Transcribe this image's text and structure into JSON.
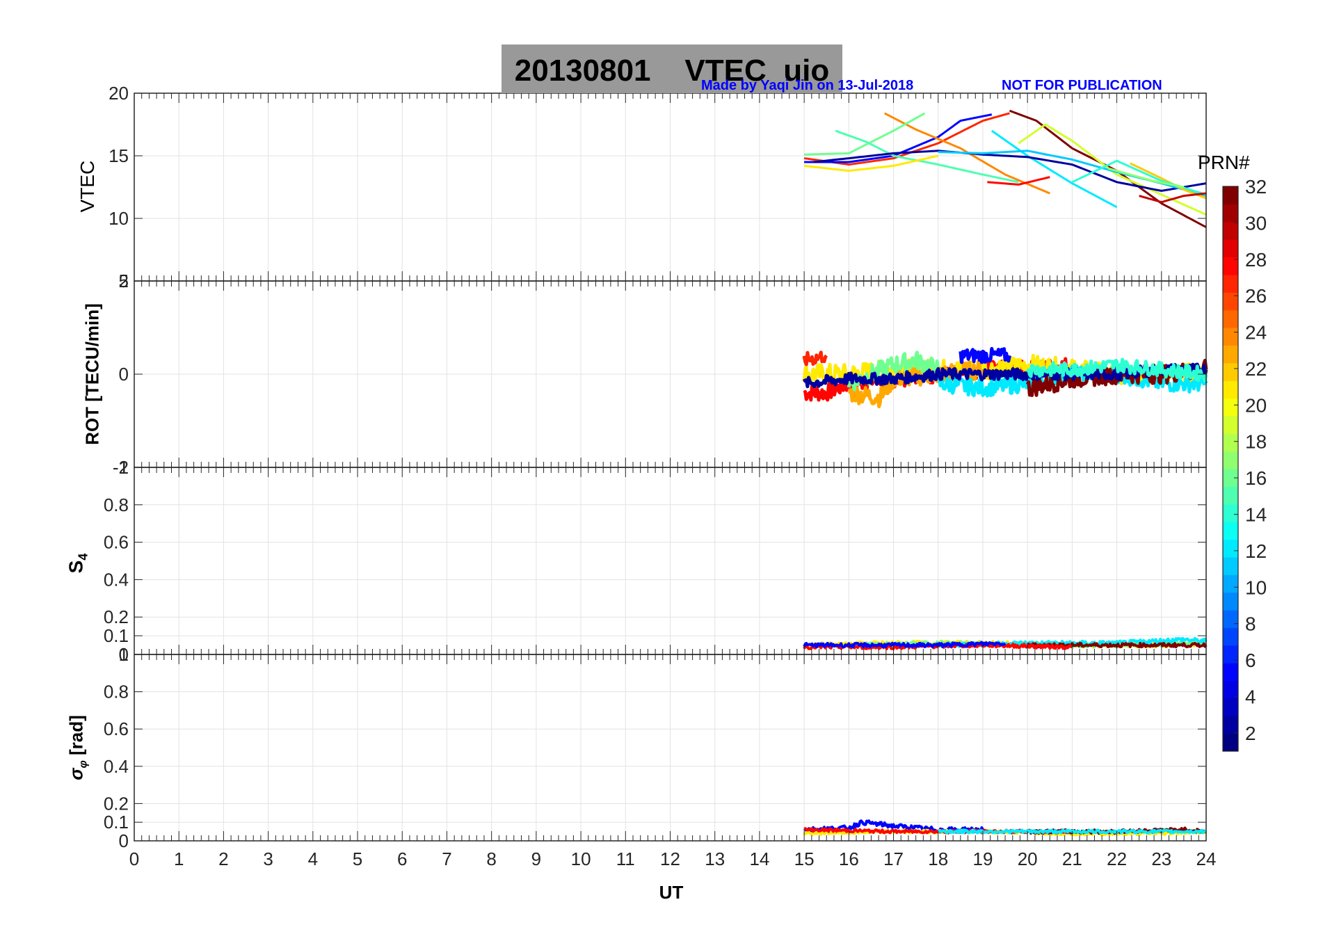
{
  "figure": {
    "title": "20130801    VTEC  uio",
    "credit_left": "Made by Yaqi Jin on 13-Jul-2018",
    "credit_right": "NOT FOR PUBLICATION",
    "xlabel": "UT",
    "colorbar_label": "PRN#",
    "colorbar_ticks": [
      2,
      4,
      6,
      8,
      10,
      12,
      14,
      16,
      18,
      20,
      22,
      24,
      26,
      28,
      30,
      32
    ],
    "colormap": "jet",
    "grid": true
  },
  "chart_data": [
    {
      "type": "line",
      "name": "vtec-panel",
      "ylabel": "VTEC",
      "xlim": [
        0,
        24
      ],
      "ylim": [
        5,
        20
      ],
      "yticks": [
        10,
        15,
        20
      ],
      "ytick_labels": [
        "10",
        "15",
        "20"
      ],
      "top_extra_tick": "",
      "series": [
        {
          "prn": 32,
          "x": [
            19.6,
            20.2,
            21,
            22,
            23,
            24
          ],
          "y": [
            18.6,
            17.8,
            15.6,
            13.8,
            11.2,
            9.3
          ]
        },
        {
          "prn": 27,
          "x": [
            15,
            16,
            17,
            18,
            19,
            19.6
          ],
          "y": [
            14.8,
            14.3,
            14.8,
            16,
            17.8,
            18.4
          ]
        },
        {
          "prn": 5,
          "x": [
            15,
            16,
            17,
            18,
            18.5,
            19.2
          ],
          "y": [
            14.5,
            14.5,
            15,
            16.5,
            17.8,
            18.3
          ]
        },
        {
          "prn": 12,
          "x": [
            19.2,
            20,
            21,
            22
          ],
          "y": [
            17,
            15,
            12.8,
            10.9
          ]
        },
        {
          "prn": 24,
          "x": [
            16.8,
            17.5,
            18.5,
            19.5,
            20.5
          ],
          "y": [
            18.4,
            17.1,
            15.6,
            13.5,
            12.0
          ]
        },
        {
          "prn": 16,
          "x": [
            15,
            16,
            17,
            17.7
          ],
          "y": [
            15.1,
            15.2,
            17,
            18.4
          ]
        },
        {
          "prn": 19,
          "x": [
            19.8,
            20.4,
            21,
            22,
            23,
            24
          ],
          "y": [
            16,
            17.5,
            16.2,
            13.5,
            11.9,
            10.3
          ]
        },
        {
          "prn": 15,
          "x": [
            15.7,
            16.4,
            17,
            18,
            19,
            19.8
          ],
          "y": [
            17,
            16.1,
            15,
            14.3,
            13.5,
            12.9
          ]
        },
        {
          "prn": 21,
          "x": [
            15,
            16,
            17,
            18
          ],
          "y": [
            14.2,
            13.8,
            14.2,
            15
          ]
        },
        {
          "prn": 2,
          "x": [
            15.2,
            16,
            17,
            18,
            19,
            20,
            21,
            22,
            23,
            24
          ],
          "y": [
            14.5,
            14.8,
            15.2,
            15.4,
            15.1,
            14.9,
            14.3,
            12.9,
            12.2,
            12.8
          ]
        },
        {
          "prn": 11,
          "x": [
            18,
            19,
            20,
            21,
            22,
            23,
            24
          ],
          "y": [
            15.3,
            15.2,
            15.4,
            14.7,
            13.7,
            12.8,
            11.8
          ]
        },
        {
          "prn": 28,
          "x": [
            19.1,
            19.8,
            20.5
          ],
          "y": [
            12.9,
            12.7,
            13.3
          ]
        },
        {
          "prn": 22,
          "x": [
            22.3,
            23,
            23.5,
            24
          ],
          "y": [
            14.4,
            13.2,
            12.3,
            11.6
          ]
        },
        {
          "prn": 14,
          "x": [
            21,
            22,
            23,
            24
          ],
          "y": [
            12.9,
            14.6,
            13.0,
            11.9
          ]
        },
        {
          "prn": 30,
          "x": [
            22.5,
            23,
            23.5,
            24
          ],
          "y": [
            11.8,
            11.3,
            11.8,
            12.0
          ]
        },
        {
          "prn": 17,
          "x": [
            21.8,
            22.8,
            23.5
          ],
          "y": [
            14.0,
            13.0,
            12.5
          ]
        }
      ]
    },
    {
      "type": "line",
      "name": "rot-panel",
      "ylabel": "ROT [TECU/min]",
      "xlim": [
        0,
        24
      ],
      "ylim": [
        -2,
        2
      ],
      "yticks": [
        -2,
        0,
        2
      ],
      "ytick_labels": [
        "-2",
        "0",
        "2"
      ],
      "top_extra_tick": "5",
      "series": [
        {
          "prn": 28,
          "x": [
            15,
            15.5,
            16,
            17,
            18,
            19,
            20,
            21
          ],
          "y": [
            -0.4,
            -0.4,
            -0.2,
            -0.1,
            0,
            0.1,
            0.1,
            0.2
          ],
          "jitter": 0.18
        },
        {
          "prn": 21,
          "x": [
            15,
            16,
            17,
            18,
            19,
            20,
            21,
            22,
            23,
            24
          ],
          "y": [
            0,
            0,
            0.1,
            0.1,
            0.1,
            0.2,
            0.1,
            0,
            0,
            0
          ],
          "jitter": 0.22
        },
        {
          "prn": 23,
          "x": [
            16,
            16.7,
            17,
            18,
            19
          ],
          "y": [
            -0.4,
            -0.5,
            -0.1,
            0,
            0.1
          ],
          "jitter": 0.2
        },
        {
          "prn": 16,
          "x": [
            16,
            17,
            17.5,
            18
          ],
          "y": [
            -0.2,
            0.2,
            0.3,
            0.1
          ],
          "jitter": 0.2
        },
        {
          "prn": 12,
          "x": [
            18,
            19,
            20,
            21,
            22,
            23,
            24
          ],
          "y": [
            -0.2,
            -0.3,
            -0.2,
            0,
            0,
            -0.2,
            -0.2
          ],
          "jitter": 0.18
        },
        {
          "prn": 5,
          "x": [
            18.5,
            19,
            19.6
          ],
          "y": [
            0.4,
            0.4,
            0.4
          ],
          "jitter": 0.15
        },
        {
          "prn": 32,
          "x": [
            20,
            21,
            22,
            23,
            24
          ],
          "y": [
            -0.3,
            -0.1,
            0,
            0,
            0.1
          ],
          "jitter": 0.2
        },
        {
          "prn": 27,
          "x": [
            15,
            15.5
          ],
          "y": [
            0.3,
            0.4
          ],
          "jitter": 0.15
        },
        {
          "prn": 2,
          "x": [
            15,
            16,
            17,
            18,
            19,
            20,
            21,
            22,
            23,
            24
          ],
          "y": [
            -0.2,
            -0.1,
            -0.1,
            0,
            0,
            0,
            0,
            0,
            0.1,
            0.1
          ],
          "jitter": 0.12
        },
        {
          "prn": 14,
          "x": [
            20,
            21,
            22,
            23,
            24
          ],
          "y": [
            0.1,
            0.1,
            0.2,
            0.1,
            0
          ],
          "jitter": 0.15
        }
      ]
    },
    {
      "type": "line",
      "name": "s4-panel",
      "ylabel": "S4",
      "xlim": [
        0,
        24
      ],
      "ylim": [
        0,
        1
      ],
      "yticks": [
        0,
        0.1,
        0.2,
        0.4,
        0.6,
        0.8,
        1
      ],
      "ytick_labels": [
        "0",
        "0.1",
        "0.2",
        "0.4",
        "0.6",
        "0.8",
        "1"
      ],
      "top_extra_tick": "-1",
      "series": [
        {
          "prn": 21,
          "x": [
            15,
            17,
            19,
            21,
            23,
            24
          ],
          "y": [
            0.05,
            0.06,
            0.06,
            0.05,
            0.05,
            0.06
          ],
          "jitter": 0.012
        },
        {
          "prn": 16,
          "x": [
            16,
            18,
            20,
            22,
            24
          ],
          "y": [
            0.05,
            0.06,
            0.05,
            0.05,
            0.06
          ],
          "jitter": 0.01
        },
        {
          "prn": 12,
          "x": [
            18,
            20,
            22,
            23.5,
            24
          ],
          "y": [
            0.05,
            0.06,
            0.06,
            0.08,
            0.07
          ],
          "jitter": 0.012
        },
        {
          "prn": 32,
          "x": [
            20,
            22,
            24
          ],
          "y": [
            0.05,
            0.05,
            0.05
          ],
          "jitter": 0.01
        },
        {
          "prn": 28,
          "x": [
            15,
            17,
            19,
            21
          ],
          "y": [
            0.04,
            0.04,
            0.05,
            0.04
          ],
          "jitter": 0.01
        },
        {
          "prn": 5,
          "x": [
            15,
            18,
            19.5
          ],
          "y": [
            0.05,
            0.05,
            0.06
          ],
          "jitter": 0.01
        }
      ]
    },
    {
      "type": "line",
      "name": "sigma-phi-panel",
      "ylabel": "σφ [rad]",
      "xlim": [
        0,
        24
      ],
      "ylim": [
        0,
        1
      ],
      "yticks": [
        0,
        0.1,
        0.2,
        0.4,
        0.6,
        0.8
      ],
      "ytick_labels": [
        "0",
        "0.1",
        "0.2",
        "0.4",
        "0.6",
        "0.8"
      ],
      "xticks": [
        0,
        1,
        2,
        3,
        4,
        5,
        6,
        7,
        8,
        9,
        10,
        11,
        12,
        13,
        14,
        15,
        16,
        17,
        18,
        19,
        20,
        21,
        22,
        23,
        24
      ],
      "xtick_labels": [
        "0",
        "1",
        "2",
        "3",
        "4",
        "5",
        "6",
        "7",
        "8",
        "9",
        "10",
        "11",
        "12",
        "13",
        "14",
        "15",
        "16",
        "17",
        "18",
        "19",
        "20",
        "21",
        "22",
        "23",
        "24"
      ],
      "top_extra_tick": "1",
      "series": [
        {
          "prn": 5,
          "x": [
            15,
            16,
            16.3,
            17,
            18,
            19
          ],
          "y": [
            0.06,
            0.07,
            0.1,
            0.08,
            0.06,
            0.06
          ],
          "jitter": 0.012
        },
        {
          "prn": 21,
          "x": [
            15,
            17,
            19,
            21,
            23,
            24
          ],
          "y": [
            0.04,
            0.05,
            0.05,
            0.04,
            0.04,
            0.05
          ],
          "jitter": 0.008
        },
        {
          "prn": 28,
          "x": [
            15,
            17,
            19,
            21
          ],
          "y": [
            0.06,
            0.05,
            0.05,
            0.05
          ],
          "jitter": 0.008
        },
        {
          "prn": 32,
          "x": [
            20,
            22,
            23.5,
            24
          ],
          "y": [
            0.05,
            0.05,
            0.06,
            0.05
          ],
          "jitter": 0.01
        },
        {
          "prn": 12,
          "x": [
            18,
            20,
            22,
            24
          ],
          "y": [
            0.05,
            0.05,
            0.05,
            0.05
          ],
          "jitter": 0.008
        }
      ]
    }
  ]
}
